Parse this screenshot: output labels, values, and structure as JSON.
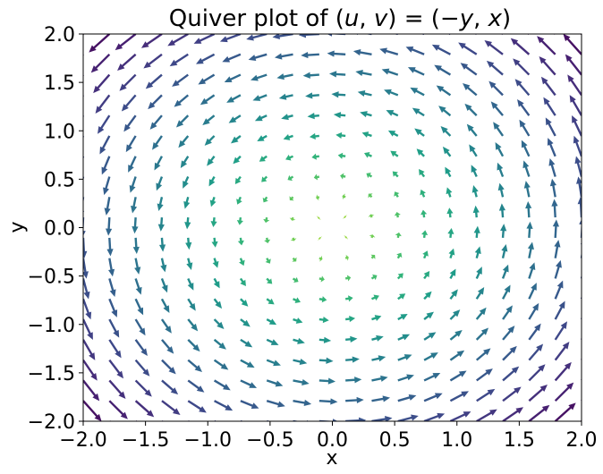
{
  "chart_data": {
    "type": "quiver",
    "title": "Quiver plot of (u, v) = (−y, x)",
    "title_parts": {
      "prefix": "Quiver plot of ",
      "lhs_open": "(",
      "u": "u",
      "comma1": ", ",
      "v": "v",
      "lhs_close": ")",
      "equals": " = ",
      "rhs_open": "(−",
      "y": "y",
      "comma2": ", ",
      "x": "x",
      "rhs_close": ")"
    },
    "xlabel": "x",
    "ylabel": "y",
    "xlim": [
      -2,
      2
    ],
    "ylim": [
      -2,
      2
    ],
    "x_ticks": [
      "−2.0",
      "−1.5",
      "−1.0",
      "−0.5",
      "0.0",
      "0.5",
      "1.0",
      "1.5",
      "2.0"
    ],
    "y_ticks": [
      "−2.0",
      "−1.5",
      "−1.0",
      "−0.5",
      "0.0",
      "0.5",
      "1.0",
      "1.5",
      "2.0"
    ],
    "grid": false,
    "field": {
      "u": "-y",
      "v": "x"
    },
    "grid_points": {
      "x_start": -2,
      "x_stop": 2,
      "count": 20
    },
    "colormap": "viridis",
    "color_by": "magnitude",
    "viridis_stops": [
      "#440154",
      "#482878",
      "#3e4989",
      "#31688e",
      "#26828e",
      "#1f9e89",
      "#35b779",
      "#6ece58",
      "#b5de2b"
    ]
  }
}
